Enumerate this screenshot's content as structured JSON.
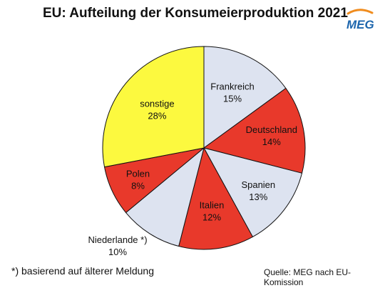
{
  "title": "EU: Aufteilung der Konsumeierproduktion 2021",
  "logo_text": "MEG",
  "footnote": "*) basierend auf älterer Meldung",
  "source": "Quelle: MEG nach EU-Komission",
  "colors": {
    "red": "#e8392b",
    "light": "#dde3f0",
    "yellow": "#fcf93f",
    "logo_blue": "#1d66ad",
    "logo_orange": "#f08c1e"
  },
  "chart_data": {
    "type": "pie",
    "title": "EU: Aufteilung der Konsumeierproduktion 2021",
    "slices": [
      {
        "name": "Frankreich",
        "label": "15%",
        "value": 15,
        "color": "#dde3f0"
      },
      {
        "name": "Deutschland",
        "label": "14%",
        "value": 14,
        "color": "#e8392b"
      },
      {
        "name": "Spanien",
        "label": "13%",
        "value": 13,
        "color": "#dde3f0"
      },
      {
        "name": "Italien",
        "label": "12%",
        "value": 12,
        "color": "#e8392b"
      },
      {
        "name": "Niederlande *)",
        "label": "10%",
        "value": 10,
        "color": "#dde3f0"
      },
      {
        "name": "Polen",
        "label": "8%",
        "value": 8,
        "color": "#e8392b"
      },
      {
        "name": "sonstige",
        "label": "28%",
        "value": 28,
        "color": "#fcf93f"
      }
    ]
  }
}
